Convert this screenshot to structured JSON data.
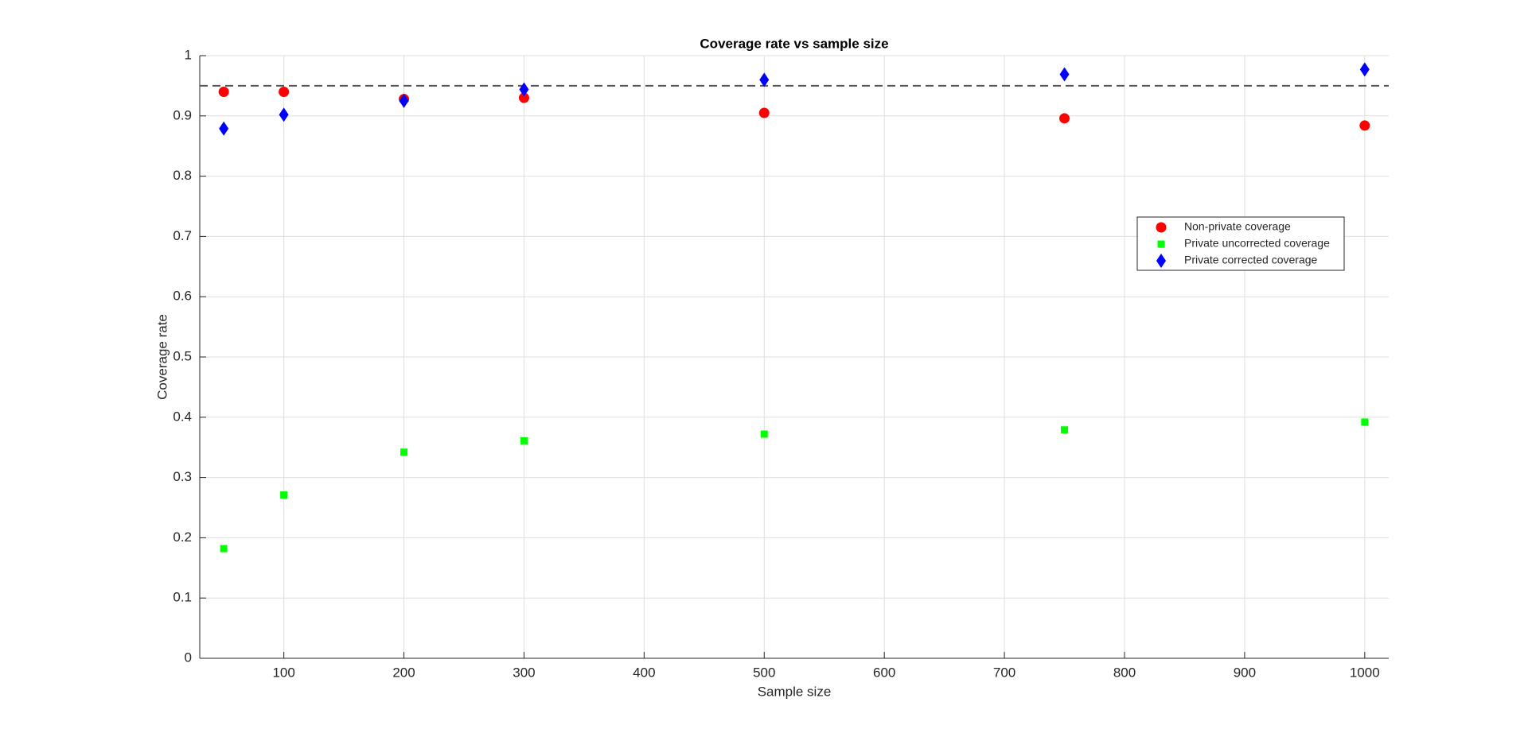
{
  "chart_data": {
    "type": "scatter",
    "title": "Coverage rate vs sample size",
    "x_label": "Sample size",
    "y_label": "Coverage rate",
    "xlim": [
      30,
      1020
    ],
    "ylim": [
      0,
      1
    ],
    "xticks": [
      100,
      200,
      300,
      400,
      500,
      600,
      700,
      800,
      900,
      1000
    ],
    "yticks": [
      0,
      0.1,
      0.2,
      0.3,
      0.4,
      0.5,
      0.6,
      0.7,
      0.8,
      0.9,
      1
    ],
    "grid": true,
    "legend": "right",
    "reference_line": {
      "value": 0.95,
      "color": "#555555",
      "style": "dashed"
    },
    "series": [
      {
        "name": "Non-private coverage",
        "color": "#ff0000",
        "marker": "circle",
        "x": [
          50,
          100,
          200,
          300,
          500,
          750,
          1000
        ],
        "values": [
          0.94,
          0.94,
          0.928,
          0.93,
          0.905,
          0.896,
          0.884
        ]
      },
      {
        "name": "Private uncorrected coverage",
        "color": "#00ff00",
        "marker": "square",
        "x": [
          50,
          100,
          200,
          300,
          500,
          750,
          1000
        ],
        "values": [
          0.182,
          0.271,
          0.342,
          0.361,
          0.372,
          0.379,
          0.392
        ]
      },
      {
        "name": "Private corrected coverage",
        "color": "#0000ff",
        "marker": "diamond",
        "x": [
          50,
          100,
          200,
          300,
          500,
          750,
          1000
        ],
        "values": [
          0.879,
          0.902,
          0.925,
          0.944,
          0.96,
          0.969,
          0.977
        ]
      }
    ]
  }
}
